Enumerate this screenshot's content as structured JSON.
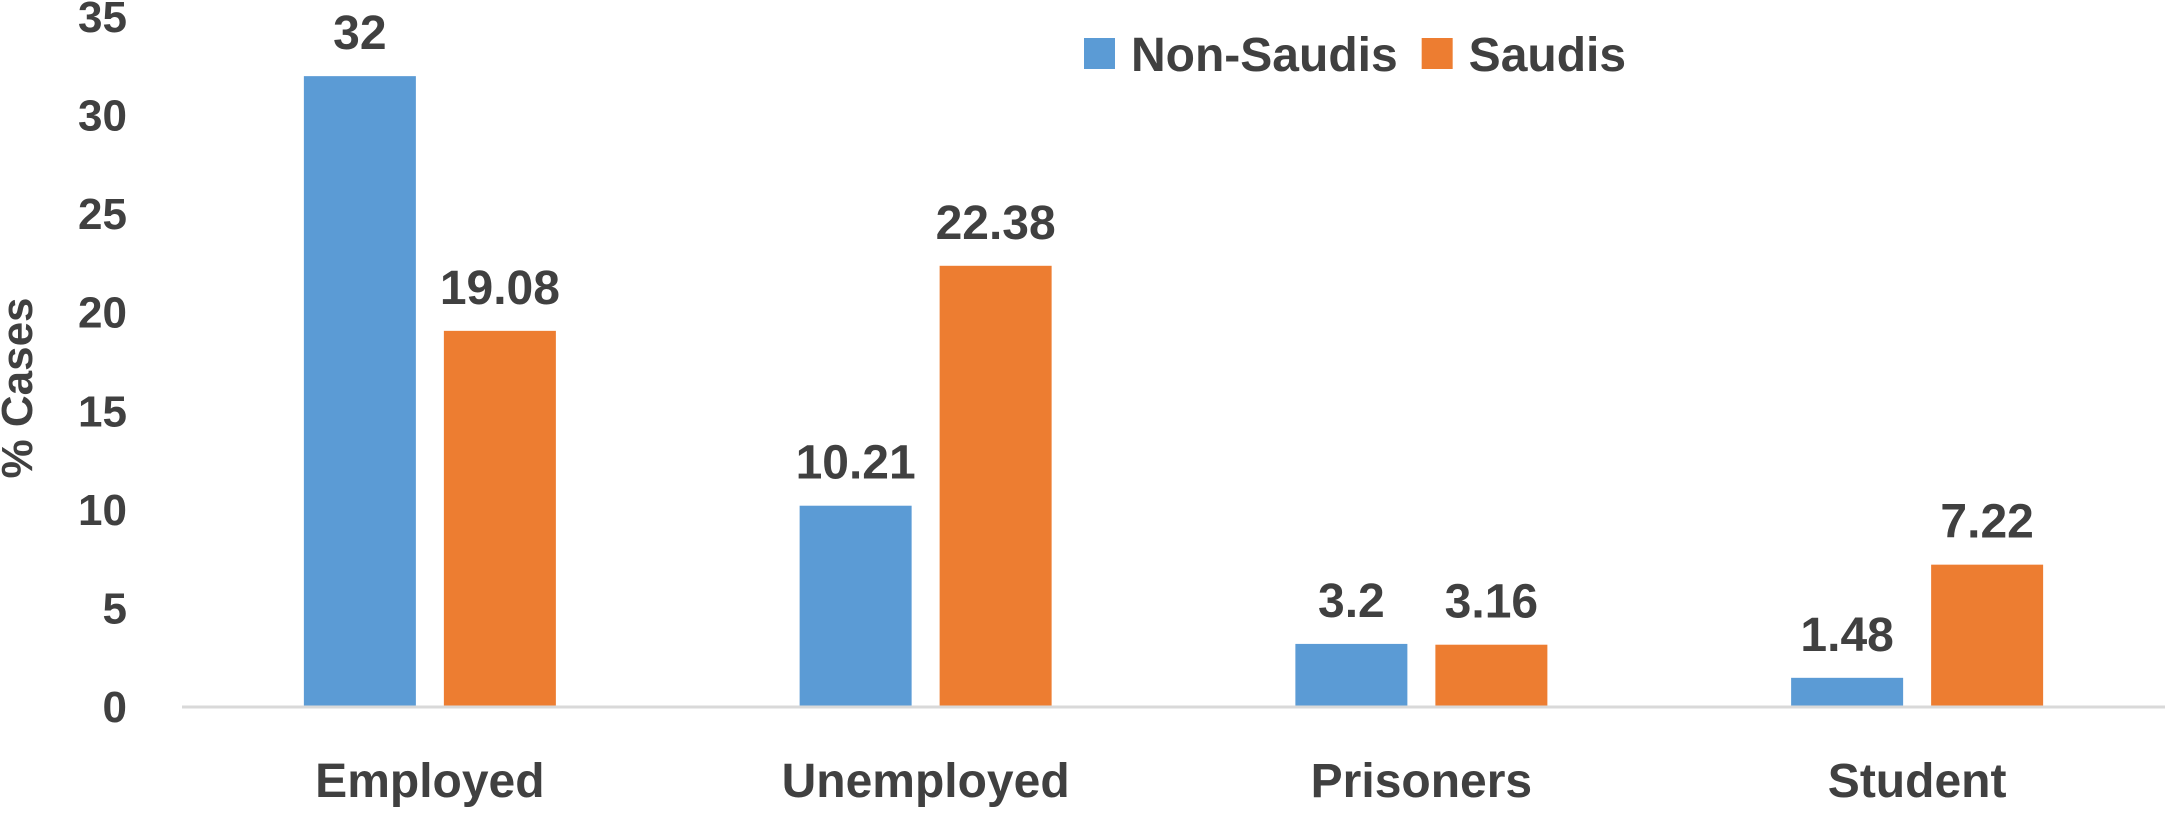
{
  "chart_data": {
    "type": "bar",
    "categories": [
      "Employed",
      "Unemployed",
      "Prisoners",
      "Student"
    ],
    "series": [
      {
        "name": "Non-Saudis",
        "color": "#5B9BD5",
        "values": [
          32,
          10.21,
          3.2,
          1.48
        ]
      },
      {
        "name": "Saudis",
        "color": "#ED7D31",
        "values": [
          19.08,
          22.38,
          3.16,
          7.22
        ]
      }
    ],
    "data_labels": [
      [
        "32",
        "10.21",
        "3.2",
        "1.48"
      ],
      [
        "19.08",
        "22.38",
        "3.16",
        "7.22"
      ]
    ],
    "y_ticks": [
      "0",
      "5",
      "10",
      "15",
      "20",
      "25",
      "30",
      "35"
    ],
    "ylabel": "% Cases",
    "xlabel": "",
    "title": "",
    "ylim": [
      0,
      35
    ],
    "grid": false,
    "legend_position": "top-right",
    "axis_color": "#D9D9D9",
    "text_color": "#404040"
  }
}
